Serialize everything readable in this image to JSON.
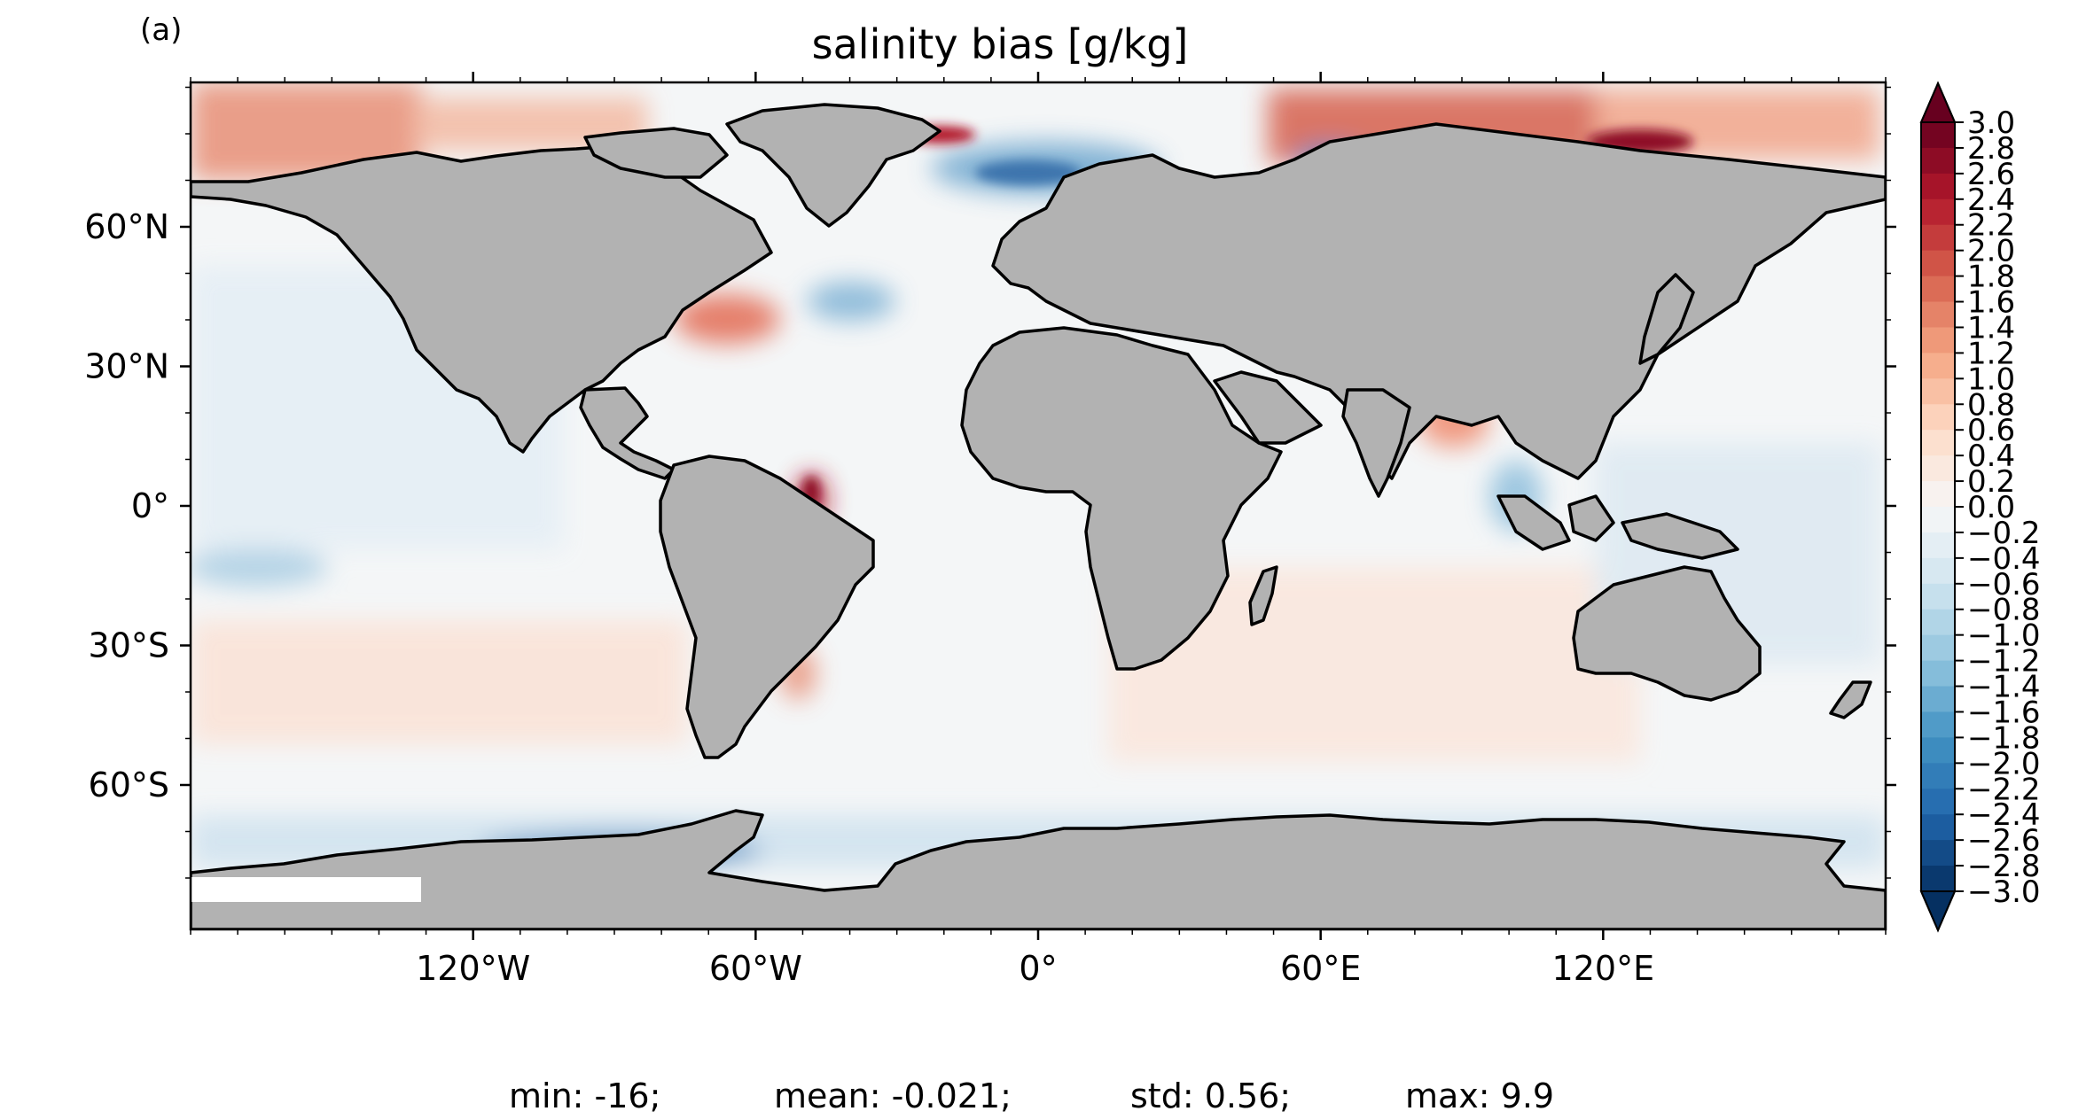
{
  "panel_label": "(a)",
  "title": "salinity bias [g/kg]",
  "lon_ticks": [
    {
      "value": -120,
      "label": "120°W"
    },
    {
      "value": -60,
      "label": "60°W"
    },
    {
      "value": 0,
      "label": "0°"
    },
    {
      "value": 60,
      "label": "60°E"
    },
    {
      "value": 120,
      "label": "120°E"
    }
  ],
  "lat_ticks": [
    {
      "value": 60,
      "label": "60°N"
    },
    {
      "value": 30,
      "label": "30°N"
    },
    {
      "value": 0,
      "label": "0°"
    },
    {
      "value": -30,
      "label": "30°S"
    },
    {
      "value": -60,
      "label": "60°S"
    }
  ],
  "colorbar": {
    "min": -3.0,
    "max": 3.0,
    "step": 0.2,
    "extend": "both",
    "colormap": "RdBu_r",
    "tick_labels": [
      "3.0",
      "2.8",
      "2.6",
      "2.4",
      "2.2",
      "2.0",
      "1.8",
      "1.6",
      "1.4",
      "1.2",
      "1.0",
      "0.8",
      "0.6",
      "0.4",
      "0.2",
      "0.0",
      "−0.2",
      "−0.4",
      "−0.6",
      "−0.8",
      "−1.0",
      "−1.2",
      "−1.4",
      "−1.6",
      "−1.8",
      "−2.0",
      "−2.2",
      "−2.4",
      "−2.6",
      "−2.8",
      "−3.0"
    ]
  },
  "stats": {
    "min": "min: -16;",
    "mean": "mean: -0.021;",
    "std": "std: 0.56;",
    "max": "max: 9.9"
  },
  "colors": {
    "land": "#b2b2b2",
    "coast": "#000000",
    "ocean_neutral": "#f7f7f7",
    "positive_strong": "#67001f",
    "positive": "#d6604d",
    "negative": "#4393c3",
    "negative_strong": "#053061"
  }
}
